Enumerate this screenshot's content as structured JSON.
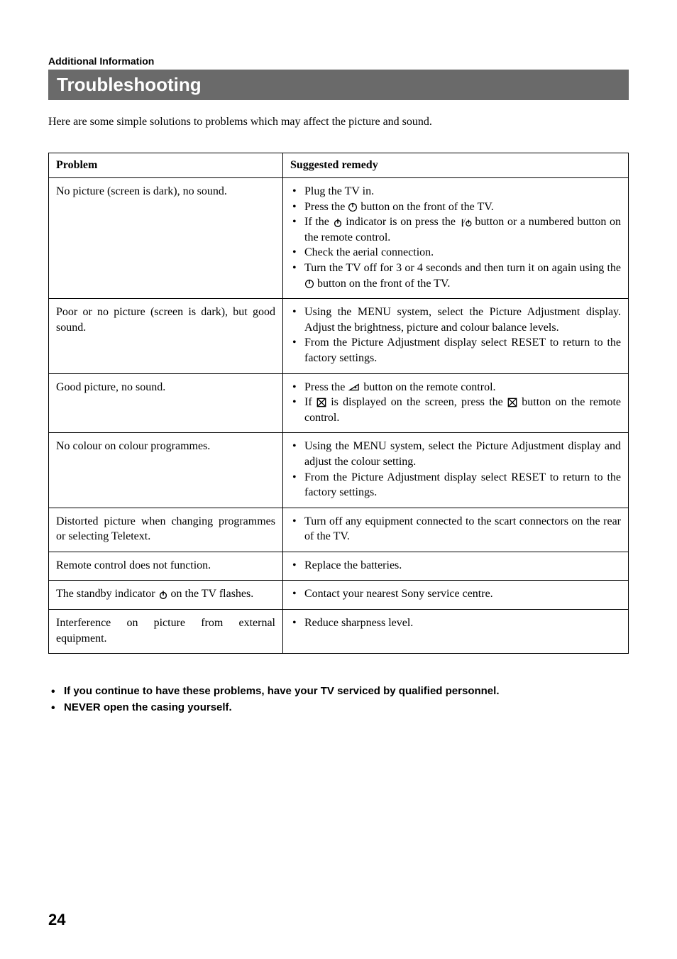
{
  "section_label": "Additional Information",
  "title": "Troubleshooting",
  "intro": "Here are some simple solutions to problems which may affect the picture and sound.",
  "table": {
    "head_problem": "Problem",
    "head_remedy": "Suggested remedy",
    "rows": [
      {
        "problem": "No picture (screen is dark), no sound.",
        "remedies": [
          {
            "pre": "Plug the TV in."
          },
          {
            "pre": "Press the ",
            "icon": "power-main-icon",
            "post": " button on the front of the TV."
          },
          {
            "pre": "If the ",
            "icon": "standby-icon",
            "mid": " indicator is on press the ",
            "icon2": "on-standby-icon",
            "post": " button or a numbered button on the remote control."
          },
          {
            "pre": "Check the aerial connection."
          },
          {
            "pre": "Turn the TV off for 3 or 4 seconds and then turn it on again using the ",
            "icon": "power-main-icon",
            "post": " button on the front of the TV."
          }
        ]
      },
      {
        "problem": "Poor or no picture (screen is dark), but good sound.",
        "remedies": [
          {
            "pre": "Using the MENU system, select the Picture Adjustment display. Adjust the brightness, picture and colour balance levels."
          },
          {
            "pre": "From the Picture Adjustment display select RESET to return to the factory settings."
          }
        ]
      },
      {
        "problem": "Good picture, no sound.",
        "remedies": [
          {
            "pre": "Press the ",
            "icon": "vol-up-icon",
            "post": " button on the remote control."
          },
          {
            "pre": "If ",
            "icon": "mute-icon",
            "mid": " is displayed on the screen, press the ",
            "icon2": "mute-icon",
            "post": " button on the remote control."
          }
        ]
      },
      {
        "problem": "No colour on colour programmes.",
        "remedies": [
          {
            "pre": "Using the MENU system, select the Picture Adjustment display and adjust the colour setting."
          },
          {
            "pre": "From the Picture Adjustment display select RESET to return to the factory settings."
          }
        ]
      },
      {
        "problem": "Distorted picture when changing programmes or selecting Teletext.",
        "remedies": [
          {
            "pre": "Turn off any equipment connected to the scart connectors on the rear of the TV."
          }
        ]
      },
      {
        "problem": "Remote control does not function.",
        "remedies": [
          {
            "pre": "Replace the batteries."
          }
        ]
      },
      {
        "problem_pre": "The standby indicator ",
        "problem_icon": "standby-icon",
        "problem_post": " on the TV flashes.",
        "remedies": [
          {
            "pre": "Contact your nearest Sony service centre."
          }
        ]
      },
      {
        "problem": "Interference on picture from external equipment.",
        "remedies": [
          {
            "pre": "Reduce sharpness level."
          }
        ]
      }
    ]
  },
  "notes": [
    "If you continue to have these problems, have your TV serviced by qualified personnel.",
    "NEVER open the casing yourself."
  ],
  "page_number": "24",
  "colors": {
    "titlebar_bg": "#6a6a6a",
    "titlebar_fg": "#ffffff",
    "page_bg": "#ffffff",
    "text": "#000000",
    "border": "#000000"
  }
}
